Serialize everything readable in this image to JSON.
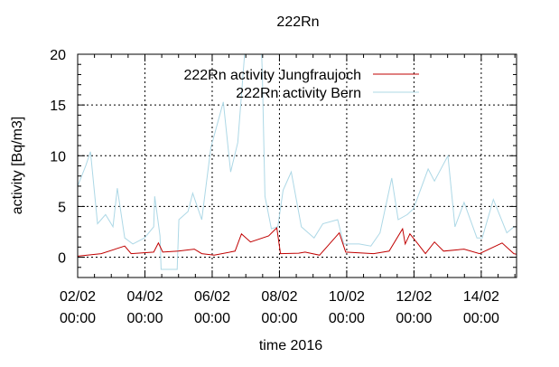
{
  "chart_data": {
    "type": "line",
    "title": "222Rn",
    "xlabel": "time 2016",
    "ylabel": "activity [Bq/m3]",
    "x_unit": "days since 02/02 00:00",
    "xlim": [
      0,
      13.05
    ],
    "ylim": [
      -2,
      20
    ],
    "grid": true,
    "legend_position": "top-center",
    "x_ticks": [
      {
        "value": 0,
        "label": [
          "02/02",
          "00:00"
        ]
      },
      {
        "value": 2,
        "label": [
          "04/02",
          "00:00"
        ]
      },
      {
        "value": 4,
        "label": [
          "06/02",
          "00:00"
        ]
      },
      {
        "value": 6,
        "label": [
          "08/02",
          "00:00"
        ]
      },
      {
        "value": 8,
        "label": [
          "10/02",
          "00:00"
        ]
      },
      {
        "value": 10,
        "label": [
          "12/02",
          "00:00"
        ]
      },
      {
        "value": 12,
        "label": [
          "14/02",
          "00:00"
        ]
      }
    ],
    "y_ticks": [
      {
        "value": 0,
        "label": "0"
      },
      {
        "value": 5,
        "label": "5"
      },
      {
        "value": 10,
        "label": "10"
      },
      {
        "value": 15,
        "label": "15"
      },
      {
        "value": 20,
        "label": "20"
      }
    ],
    "series": [
      {
        "name": "222Rn activity Jungfraujoch",
        "color": "#c00000",
        "points": [
          [
            0,
            0.1
          ],
          [
            0.7,
            0.35
          ],
          [
            1.4,
            1.1
          ],
          [
            1.59,
            0.35
          ],
          [
            2.26,
            0.5
          ],
          [
            2.4,
            1.4
          ],
          [
            2.53,
            0.5
          ],
          [
            2.99,
            0.6
          ],
          [
            3.47,
            0.8
          ],
          [
            3.69,
            0.35
          ],
          [
            4.06,
            0.2
          ],
          [
            4.68,
            0.6
          ],
          [
            4.87,
            2.3
          ],
          [
            5.14,
            1.5
          ],
          [
            5.68,
            2.1
          ],
          [
            5.92,
            2.9
          ],
          [
            6.03,
            0.35
          ],
          [
            6.57,
            0.4
          ],
          [
            6.76,
            0.5
          ],
          [
            7.19,
            0.2
          ],
          [
            7.46,
            1.2
          ],
          [
            7.78,
            2.4
          ],
          [
            7.97,
            0.5
          ],
          [
            8.8,
            0.35
          ],
          [
            9.26,
            0.6
          ],
          [
            9.66,
            2.8
          ],
          [
            9.74,
            1.3
          ],
          [
            9.88,
            2.3
          ],
          [
            10.12,
            1.3
          ],
          [
            10.34,
            0.35
          ],
          [
            10.61,
            1.5
          ],
          [
            10.88,
            0.6
          ],
          [
            11.49,
            0.8
          ],
          [
            11.95,
            0.35
          ],
          [
            12.62,
            1.4
          ],
          [
            12.97,
            0.35
          ],
          [
            13.05,
            0.3
          ]
        ]
      },
      {
        "name": "222Rn activity Bern",
        "color": "#add8e6",
        "points": [
          [
            0,
            7
          ],
          [
            0.24,
            9
          ],
          [
            0.38,
            10.4
          ],
          [
            0.59,
            3.3
          ],
          [
            0.83,
            4.2
          ],
          [
            1.05,
            3
          ],
          [
            1.18,
            6.8
          ],
          [
            1.4,
            1.9
          ],
          [
            1.64,
            1.3
          ],
          [
            1.99,
            1.9
          ],
          [
            2.26,
            3
          ],
          [
            2.29,
            6
          ],
          [
            2.45,
            2.1
          ],
          [
            2.48,
            -1.2
          ],
          [
            2.96,
            -1.2
          ],
          [
            3.01,
            3.7
          ],
          [
            3.28,
            4.5
          ],
          [
            3.42,
            6.3
          ],
          [
            3.69,
            3.7
          ],
          [
            3.96,
            10.8
          ],
          [
            4.33,
            15.3
          ],
          [
            4.55,
            8.4
          ],
          [
            4.76,
            11.3
          ],
          [
            5.01,
            22
          ],
          [
            5.45,
            22
          ],
          [
            5.49,
            18
          ],
          [
            5.57,
            6
          ],
          [
            5.76,
            2.8
          ],
          [
            5.95,
            3
          ],
          [
            6.11,
            6.6
          ],
          [
            6.35,
            8.4
          ],
          [
            6.65,
            3
          ],
          [
            7.03,
            1.9
          ],
          [
            7.29,
            3.3
          ],
          [
            7.73,
            3.7
          ],
          [
            7.91,
            1.3
          ],
          [
            8.37,
            1.3
          ],
          [
            8.72,
            1.1
          ],
          [
            8.99,
            2.4
          ],
          [
            9.34,
            7.8
          ],
          [
            9.53,
            3.7
          ],
          [
            9.8,
            4.2
          ],
          [
            9.99,
            4.8
          ],
          [
            10.42,
            8.7
          ],
          [
            10.61,
            7.5
          ],
          [
            11.01,
            10
          ],
          [
            11.22,
            3
          ],
          [
            11.49,
            5.4
          ],
          [
            11.87,
            1.9
          ],
          [
            12.03,
            1.9
          ],
          [
            12.36,
            5.7
          ],
          [
            12.76,
            2.4
          ],
          [
            12.97,
            3
          ],
          [
            13.05,
            3
          ]
        ]
      }
    ]
  }
}
